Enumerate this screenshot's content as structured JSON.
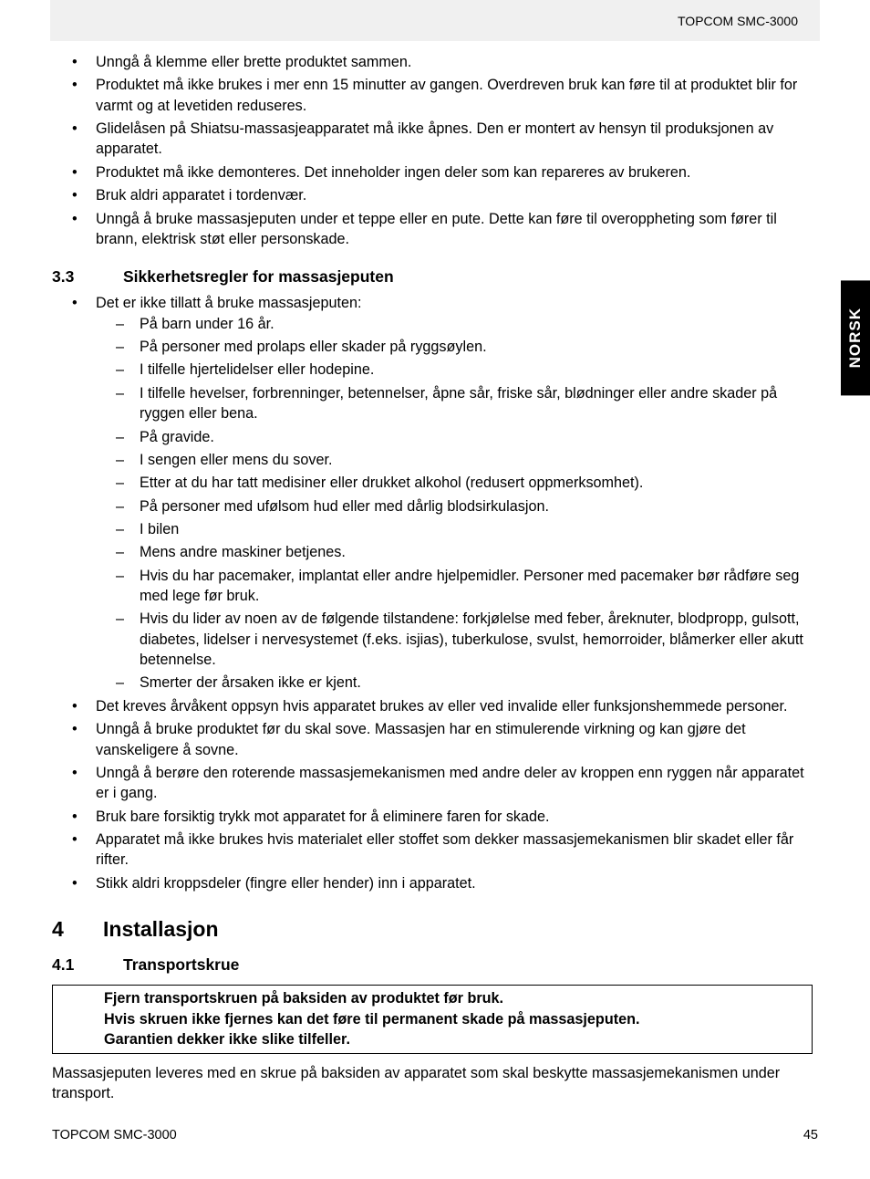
{
  "header": {
    "product": "TOPCOM SMC-3000"
  },
  "sideTab": {
    "label": "NORSK"
  },
  "footer": {
    "product": "TOPCOM SMC-3000",
    "page": "45"
  },
  "topBullets": [
    "Unngå å klemme eller brette produktet sammen.",
    "Produktet må ikke brukes i mer enn 15 minutter av gangen. Overdreven bruk kan føre til at produktet blir for varmt og at levetiden reduseres.",
    "Glidelåsen på Shiatsu-massasjeapparatet må ikke åpnes. Den er montert av hensyn til produksjonen av apparatet.",
    "Produktet må ikke demonteres. Det inneholder ingen deler som kan repareres av brukeren.",
    "Bruk aldri apparatet i tordenvær.",
    "Unngå å bruke massasjeputen under et teppe eller en pute. Dette kan føre til overoppheting som fører til brann, elektrisk støt eller personskade."
  ],
  "section33": {
    "number": "3.3",
    "title": "Sikkerhetsregler for massasjeputen",
    "bullets": [
      {
        "text": "Det er ikke tillatt å bruke massasjeputen:",
        "sub": [
          "På barn under 16 år.",
          "På personer med prolaps eller skader på ryggsøylen.",
          "I tilfelle hjertelidelser eller hodepine.",
          "I tilfelle hevelser, forbrenninger, betennelser, åpne sår, friske sår, blødninger eller andre skader på ryggen eller bena.",
          "På gravide.",
          "I sengen eller mens du sover.",
          "Etter at du har tatt medisiner eller drukket alkohol (redusert oppmerksomhet).",
          "På personer med ufølsom hud eller med dårlig blodsirkulasjon.",
          "I bilen",
          "Mens andre maskiner betjenes.",
          "Hvis du har pacemaker, implantat eller andre hjelpemidler. Personer med pacemaker bør rådføre seg med lege før bruk.",
          "Hvis du lider av noen av de følgende tilstandene: forkjølelse med feber, åreknuter, blodpropp, gulsott, diabetes, lidelser i nervesystemet (f.eks. isjias), tuberkulose, svulst, hemorroider, blåmerker eller akutt betennelse.",
          " Smerter der årsaken ikke er kjent."
        ]
      },
      "Det kreves årvåkent oppsyn hvis apparatet brukes av eller ved invalide eller funksjonshemmede personer.",
      "Unngå å bruke produktet før du skal sove. Massasjen har en stimulerende virkning og kan gjøre det vanskeligere å sovne.",
      "Unngå å berøre den roterende massasjemekanismen med andre deler av kroppen enn ryggen når apparatet er i gang.",
      "Bruk bare forsiktig trykk mot apparatet for å eliminere faren for skade.",
      "Apparatet må ikke brukes hvis materialet eller stoffet som dekker massasjemekanismen blir skadet eller får rifter.",
      "Stikk aldri kroppsdeler (fingre eller hender) inn i apparatet."
    ]
  },
  "section4": {
    "number": "4",
    "title": "Installasjon"
  },
  "section41": {
    "number": "4.1",
    "title": "Transportskrue",
    "warning": [
      "Fjern transportskruen på baksiden av produktet før bruk.",
      "Hvis skruen ikke fjernes kan det føre til permanent skade på massasjeputen.",
      "Garantien dekker ikke slike tilfeller."
    ],
    "paragraph": "Massasjeputen leveres med en skrue på baksiden av apparatet som skal beskytte massasjemekanismen under transport."
  }
}
